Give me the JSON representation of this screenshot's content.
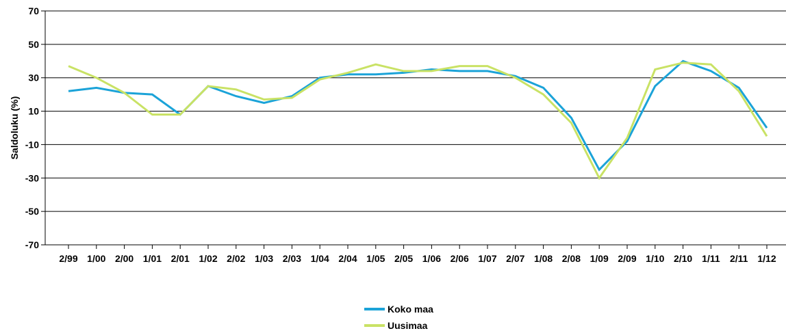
{
  "chart_data": {
    "type": "line",
    "title": "",
    "xlabel": "",
    "ylabel": "Saldoluku (%)",
    "ylim": [
      -70,
      70
    ],
    "yticks": [
      70,
      50,
      30,
      10,
      -10,
      -30,
      -50,
      -70
    ],
    "grid": true,
    "legend_position": "bottom-center",
    "categories": [
      "2/99",
      "1/00",
      "2/00",
      "1/01",
      "2/01",
      "1/02",
      "2/02",
      "1/03",
      "2/03",
      "1/04",
      "2/04",
      "1/05",
      "2/05",
      "1/06",
      "2/06",
      "1/07",
      "2/07",
      "1/08",
      "2/08",
      "1/09",
      "2/09",
      "1/10",
      "2/10",
      "1/11",
      "2/11",
      "1/12"
    ],
    "series": [
      {
        "name": "Koko maa",
        "color": "#1ba3d8",
        "values": [
          22,
          24,
          21,
          20,
          8,
          25,
          19,
          15,
          19,
          30,
          32,
          32,
          33,
          35,
          34,
          34,
          31,
          24,
          6,
          -25,
          -8,
          25,
          40,
          34,
          24,
          0
        ]
      },
      {
        "name": "Uusimaa",
        "color": "#c9e265",
        "values": [
          37,
          30,
          21,
          8,
          8,
          25,
          23,
          17,
          18,
          29,
          33,
          38,
          34,
          34,
          37,
          37,
          30,
          20,
          3,
          -30,
          -6,
          35,
          39,
          38,
          22,
          -5
        ]
      }
    ]
  }
}
